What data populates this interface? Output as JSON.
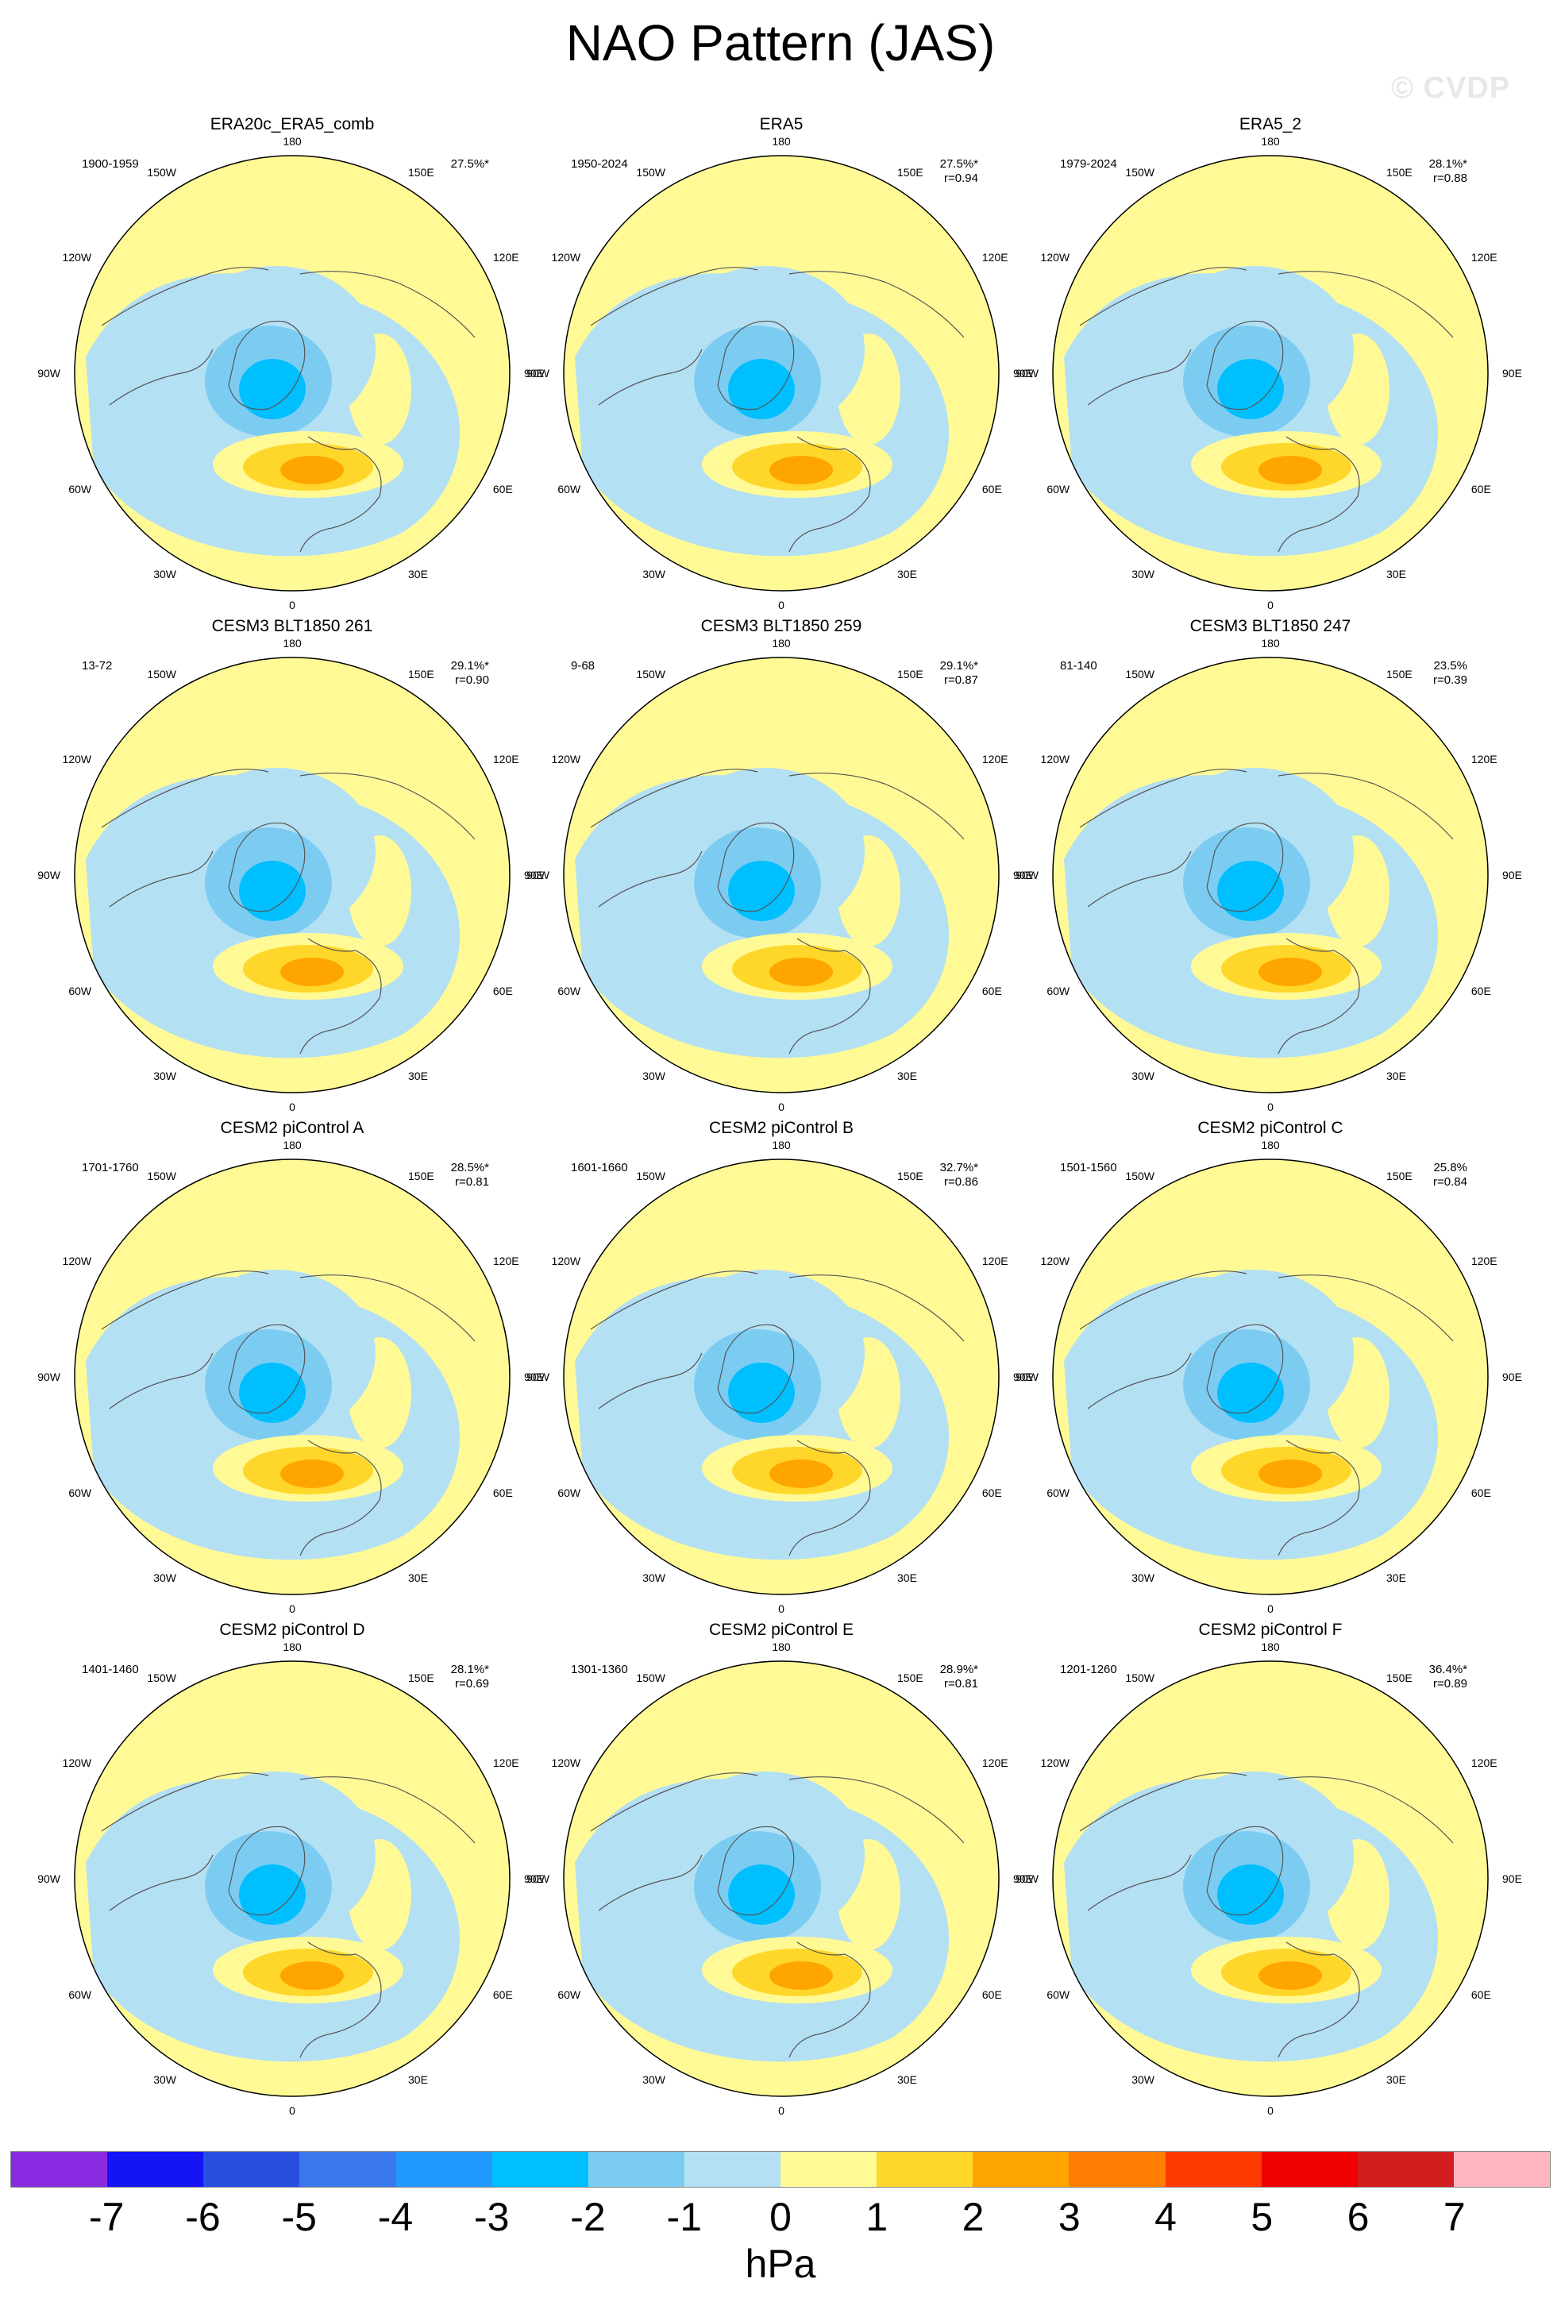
{
  "title": "NAO Pattern (JAS)",
  "watermark": "© CVDP",
  "lon_labels": [
    "180",
    "150E",
    "120E",
    "90E",
    "60E",
    "30E",
    "0",
    "30W",
    "60W",
    "90W",
    "120W",
    "150W"
  ],
  "panels": [
    {
      "title": "ERA20c_ERA5_comb",
      "years": "1900-1959",
      "pct": "27.5%*",
      "r": ""
    },
    {
      "title": "ERA5",
      "years": "1950-2024",
      "pct": "27.5%*",
      "r": "r=0.94"
    },
    {
      "title": "ERA5_2",
      "years": "1979-2024",
      "pct": "28.1%*",
      "r": "r=0.88"
    },
    {
      "title": "CESM3 BLT1850 261",
      "years": "13-72",
      "pct": "29.1%*",
      "r": "r=0.90"
    },
    {
      "title": "CESM3 BLT1850 259",
      "years": "9-68",
      "pct": "29.1%*",
      "r": "r=0.87"
    },
    {
      "title": "CESM3 BLT1850 247",
      "years": "81-140",
      "pct": "23.5%",
      "r": "r=0.39"
    },
    {
      "title": "CESM2 piControl A",
      "years": "1701-1760",
      "pct": "28.5%*",
      "r": "r=0.81"
    },
    {
      "title": "CESM2 piControl B",
      "years": "1601-1660",
      "pct": "32.7%*",
      "r": "r=0.86"
    },
    {
      "title": "CESM2 piControl C",
      "years": "1501-1560",
      "pct": "25.8%",
      "r": "r=0.84"
    },
    {
      "title": "CESM2 piControl D",
      "years": "1401-1460",
      "pct": "28.1%*",
      "r": "r=0.69"
    },
    {
      "title": "CESM2 piControl E",
      "years": "1301-1360",
      "pct": "28.9%*",
      "r": "r=0.81"
    },
    {
      "title": "CESM2 piControl F",
      "years": "1201-1260",
      "pct": "36.4%*",
      "r": "r=0.89"
    }
  ],
  "colorbar": {
    "colors": [
      "#8a2be2",
      "#1414f5",
      "#2a4ee0",
      "#3a78ee",
      "#2299ff",
      "#00bfff",
      "#7cccf2",
      "#b4e0f4",
      "#fffa96",
      "#ffd62a",
      "#ffa500",
      "#ff7d00",
      "#ff3a00",
      "#ee0000",
      "#d21e1e",
      "#ffb6c1"
    ],
    "ticks": [
      "-7",
      "-6",
      "-5",
      "-4",
      "-3",
      "-2",
      "-1",
      "0",
      "1",
      "2",
      "3",
      "4",
      "5",
      "6",
      "7"
    ],
    "units": "hPa"
  }
}
